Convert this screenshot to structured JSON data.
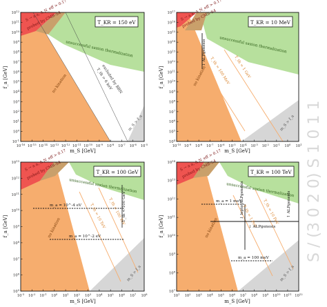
{
  "watermark": "S / (3 0 2 0) S 1 0 1 1",
  "colors": {
    "orange": "#f6ad6e",
    "green": "#b7e09d",
    "red": "#ef5450",
    "tan": "#c9a06b",
    "gray": "#d6d6d6",
    "frame": "#111111"
  },
  "chart_data": [
    {
      "type": "area",
      "ylabel": "f_a [GeV]",
      "xlabel": "m_S [GeV]",
      "xlim": [
        -16,
        -5
      ],
      "ylim": [
        -1,
        12
      ],
      "x_ticks": [
        "10^-16",
        "10^-15",
        "10^-14",
        "10^-13",
        "10^-12",
        "10^-11",
        "10^-10",
        "10^-9",
        "10^-8",
        "10^-7",
        "10^-6",
        "10^-5"
      ],
      "y_ticks": [
        "10^-1",
        "10^0",
        "10^1",
        "10^2",
        "10^3",
        "10^4",
        "10^5",
        "10^6",
        "10^7",
        "10^8",
        "10^9",
        "10^10",
        "10^11",
        "10^12"
      ],
      "tkr_label": "T_KR = 150 eV",
      "region_labels": {
        "red": "S → a a, Δ N_eff > 0.17",
        "red_sub": "probed by CMB-S4",
        "green": "unsuccessful saxion thermalization",
        "white_band": "excluded by BBN",
        "white_band_sub": "T_th > 6 keV",
        "orange": "no kination",
        "gray": "m_S > f_a"
      }
    },
    {
      "type": "area",
      "ylabel": "f_a [GeV]",
      "xlabel": "m_S [GeV]",
      "xlim": [
        -10,
        1
      ],
      "ylim": [
        4,
        17
      ],
      "x_ticks": [
        "10^-10",
        "10^-9",
        "10^-8",
        "10^-7",
        "10^-6",
        "10^-5",
        "10^-4",
        "10^-3",
        "10^-2",
        "10^-1",
        "10^0",
        "10^1"
      ],
      "y_ticks": [
        "10^4",
        "10^5",
        "10^6",
        "10^7",
        "10^8",
        "10^9",
        "10^10",
        "10^11",
        "10^12",
        "10^13",
        "10^14",
        "10^15",
        "10^16",
        "10^17"
      ],
      "tkr_label": "T_KR = 10 MeV",
      "region_labels": {
        "red": "S → a a, Δ N_eff > 0.17",
        "red_sub": "probed by CMB-S4",
        "green": "unsuccessful saxion thermalization",
        "orange": "no kination",
        "gray": "m_S > f_a",
        "line1": "T_th = 100 MeV",
        "line2": "T_th = 1 GeV",
        "arrow": "↓ ALPgenesis"
      }
    },
    {
      "type": "area",
      "ylabel": "f_a [GeV]",
      "xlabel": "m_S [GeV]",
      "xlim": [
        -3,
        8
      ],
      "ylim": [
        5,
        13
      ],
      "x_ticks": [
        "10^-3",
        "10^-2",
        "10^-1",
        "10^0",
        "10^1",
        "10^2",
        "10^3",
        "10^4",
        "10^5",
        "10^6",
        "10^7",
        "10^8"
      ],
      "y_ticks": [
        "10^5",
        "10^6",
        "10^7",
        "10^8",
        "10^9",
        "10^10",
        "10^11",
        "10^12",
        "10^13"
      ],
      "tkr_label": "T_KR = 100 GeV",
      "region_labels": {
        "red": "S → a a, Δ N_eff > 0.17",
        "red_sub": "probed by CMB-S4",
        "green": "unsuccessful saxion thermalization",
        "orange": "no kination",
        "gray": "m_S > f_a",
        "line1": "T_th = 10 TeV",
        "line2": "T_th = 100 TeV",
        "ma1": "m_a = 10^-4 eV",
        "ma2": "m_a = 10^-2 eV",
        "ewk": "T_th < 100 GeV"
      }
    },
    {
      "type": "area",
      "ylabel": "f_a [GeV]",
      "xlabel": "m_S [GeV]",
      "xlim": [
        1,
        12
      ],
      "ylim": [
        7,
        14
      ],
      "x_ticks": [
        "10^1",
        "10^2",
        "10^3",
        "10^4",
        "10^5",
        "10^6",
        "10^7",
        "10^8",
        "10^9",
        "10^10",
        "10^11",
        "10^12"
      ],
      "y_ticks": [
        "10^7",
        "10^8",
        "10^9",
        "10^10",
        "10^11",
        "10^12",
        "10^13",
        "10^14"
      ],
      "tkr_label": "T_KR = 100 TeV",
      "region_labels": {
        "red": "S → a a, Δ N_eff > 0.17",
        "red_sub": "probed by CMB-S4",
        "green": "unsuccessful saxion thermalization",
        "orange": "no kination",
        "gray": "m_S > f_a",
        "line1": "T_th = 1 PeV",
        "line2": "T_th = 10 PeV",
        "ma1": "m_a = 1 meV",
        "ma2": "m_a = 100 meV",
        "arrow1": "↓ lepto-ALPgenesis",
        "arrow2": "↓ ALPgenesis",
        "arrow3": "↑ ALPgenesis"
      }
    }
  ]
}
